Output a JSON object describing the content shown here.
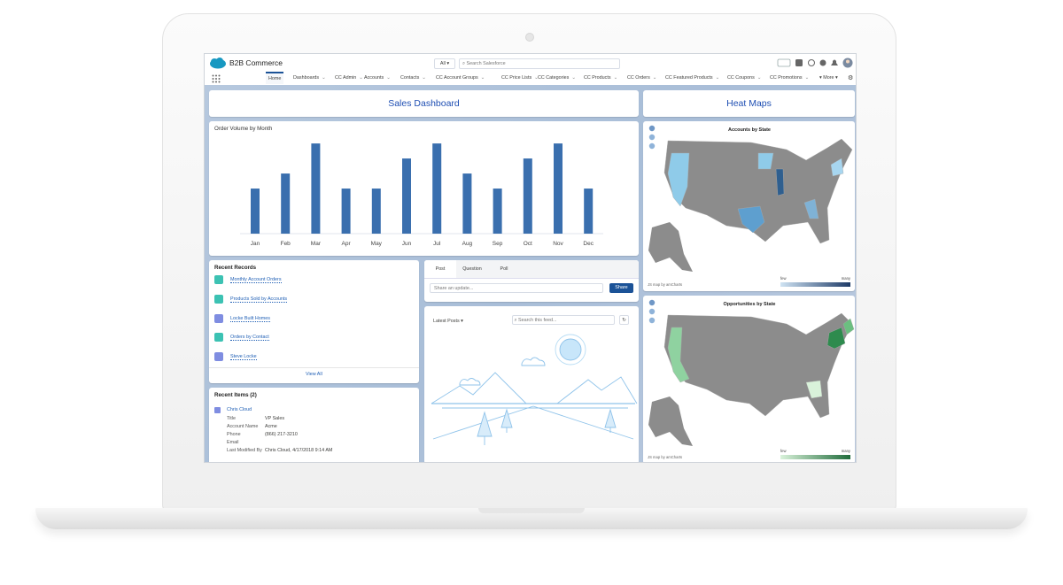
{
  "header": {
    "app_name": "B2B Commerce",
    "search_scope": "All",
    "search_placeholder": "Search Salesforce"
  },
  "nav": {
    "tabs": [
      "Home",
      "Dashboards",
      "CC Admin",
      "Accounts",
      "Contacts",
      "CC Account Groups",
      "CC Price Lists",
      "CC Categories",
      "CC Products",
      "CC Orders",
      "CC Featured Products",
      "CC Coupons",
      "CC Promotions"
    ],
    "more": "More"
  },
  "dashboard": {
    "title": "Sales Dashboard"
  },
  "chart_data": {
    "type": "bar",
    "title": "Order Volume by Month",
    "categories": [
      "Jan",
      "Feb",
      "Mar",
      "Apr",
      "May",
      "Jun",
      "Jul",
      "Aug",
      "Sep",
      "Oct",
      "Nov",
      "Dec"
    ],
    "values": [
      3,
      4,
      6,
      3,
      3,
      5,
      6,
      4,
      3,
      5,
      6,
      3
    ],
    "color": "#3a6fae",
    "ylim": [
      0,
      6.3
    ]
  },
  "heat_maps": {
    "title": "Heat Maps",
    "maps": [
      {
        "title": "Accounts by State",
        "credit": "JS map by amCharts",
        "legend_low": "few",
        "legend_high": "many"
      },
      {
        "title": "Opportunities by State",
        "credit": "JS map by amCharts",
        "legend_low": "few",
        "legend_high": "many"
      }
    ]
  },
  "recent_records": {
    "title": "Recent Records",
    "items": [
      "Monthly Account Orders",
      "Products Sold by Accounts",
      "Locke Built Homes",
      "Orders by Contact",
      "Steve Locke"
    ],
    "view_all": "View All"
  },
  "recent_items": {
    "title": "Recent Items (2)",
    "name": "Chris Cloud",
    "fields": [
      {
        "label": "Title",
        "value": "VP Sales"
      },
      {
        "label": "Account Name",
        "value": "Acme"
      },
      {
        "label": "Phone",
        "value": "(866) 217-3210"
      },
      {
        "label": "Email"
      },
      {
        "label": "Last Modified By",
        "value": "Chris Cloud, 4/17/2018 9:14 AM"
      }
    ]
  },
  "publisher": {
    "tabs": [
      "Post",
      "Question",
      "Poll"
    ],
    "placeholder": "Share an update...",
    "button": "Share"
  },
  "feed": {
    "sort": "Latest Posts",
    "search_placeholder": "Search this feed..."
  }
}
